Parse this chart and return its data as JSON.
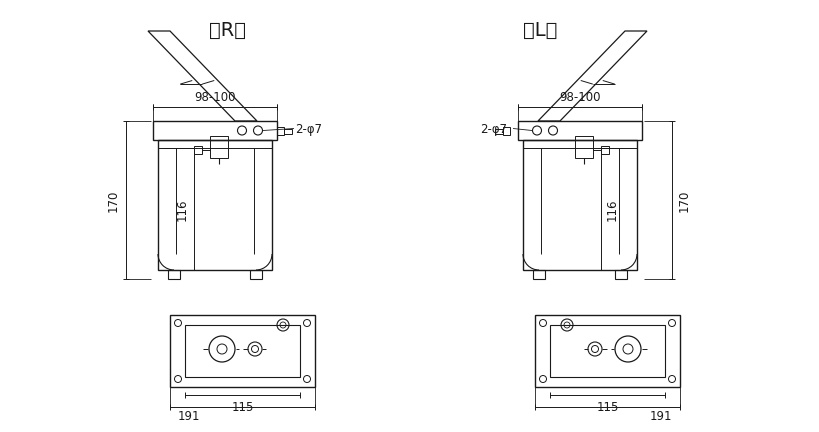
{
  "bg_color": "#ffffff",
  "lc": "#1a1a1a",
  "title_R": "（R）",
  "title_L": "（L）",
  "dim_98_100": "98-100",
  "dim_2phi7_R": "2-φ7",
  "dim_2phi7_L": "2-φ7",
  "dim_170": "170",
  "dim_116": "116",
  "dim_115": "115",
  "dim_191": "191",
  "fs": 8.5,
  "ft": 14
}
